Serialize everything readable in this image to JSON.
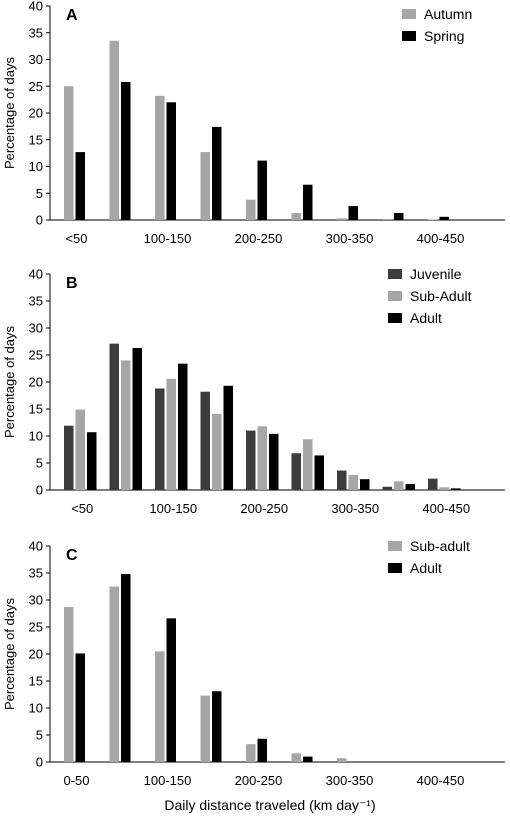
{
  "chart_data": [
    {
      "type": "bar",
      "panel": "A",
      "ylabel": "Percentage of days",
      "ylim": [
        0,
        40
      ],
      "yticks": [
        "0",
        "5",
        "10",
        "15",
        "20",
        "25",
        "30",
        "35",
        "40"
      ],
      "xtick_labels": [
        "<50",
        "100-150",
        "200-250",
        "300-350",
        "400-450"
      ],
      "n_categories": 10,
      "legend_position": "top-right",
      "series": [
        {
          "name": "Autumn",
          "color": "#a6a6a6",
          "values": [
            25.0,
            33.5,
            23.2,
            12.7,
            3.8,
            1.3,
            0.3,
            0.2,
            0.1,
            0.0
          ]
        },
        {
          "name": "Spring",
          "color": "#000000",
          "values": [
            12.7,
            25.8,
            22.0,
            17.4,
            11.1,
            6.6,
            2.6,
            1.3,
            0.6,
            0.0
          ]
        }
      ]
    },
    {
      "type": "bar",
      "panel": "B",
      "ylabel": "Percentage of days",
      "ylim": [
        0,
        40
      ],
      "yticks": [
        "0",
        "5",
        "10",
        "15",
        "20",
        "25",
        "30",
        "35",
        "40"
      ],
      "xtick_labels": [
        "<50",
        "100-150",
        "200-250",
        "300-350",
        "400-450"
      ],
      "n_categories": 10,
      "legend_position": "top-right",
      "series": [
        {
          "name": "Juvenile",
          "color": "#3c3c3c",
          "values": [
            11.9,
            27.1,
            18.8,
            18.2,
            11.0,
            6.8,
            3.6,
            0.6,
            2.1,
            0.0
          ]
        },
        {
          "name": "Sub-Adult",
          "color": "#a6a6a6",
          "values": [
            14.9,
            24.0,
            20.6,
            14.1,
            11.8,
            9.4,
            2.8,
            1.6,
            0.5,
            0.0
          ]
        },
        {
          "name": "Adult",
          "color": "#000000",
          "values": [
            10.7,
            26.3,
            23.4,
            19.3,
            10.4,
            6.4,
            2.0,
            1.1,
            0.3,
            0.0
          ]
        }
      ]
    },
    {
      "type": "bar",
      "panel": "C",
      "ylabel": "Percentage of days",
      "xlabel": "Daily distance traveled (km day⁻¹)",
      "ylim": [
        0,
        40
      ],
      "yticks": [
        "0",
        "5",
        "10",
        "15",
        "20",
        "25",
        "30",
        "35",
        "40"
      ],
      "xtick_labels": [
        "0-50",
        "100-150",
        "200-250",
        "300-350",
        "400-450"
      ],
      "n_categories": 10,
      "legend_position": "top-right",
      "series": [
        {
          "name": "Sub-adult",
          "color": "#a6a6a6",
          "values": [
            28.7,
            32.5,
            20.5,
            12.3,
            3.3,
            1.6,
            0.7,
            0.0,
            0.0,
            0.0
          ]
        },
        {
          "name": "Adult",
          "color": "#000000",
          "values": [
            20.1,
            34.8,
            26.6,
            13.1,
            4.3,
            1.0,
            0.0,
            0.0,
            0.0,
            0.0
          ]
        }
      ]
    }
  ]
}
